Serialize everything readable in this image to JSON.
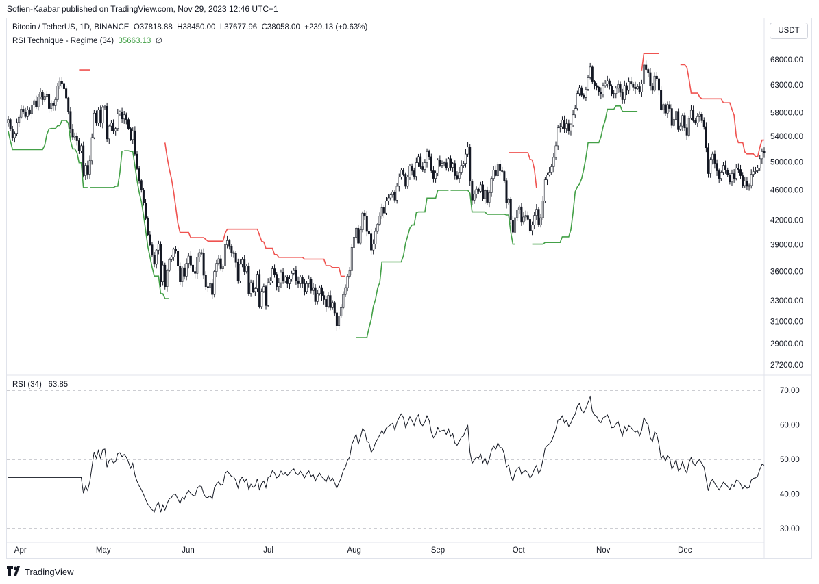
{
  "header": {
    "published": "Sofien-Kaabar published on TradingView.com, Nov 29, 2023 12:46 UTC+1"
  },
  "main_legend": {
    "symbol": "Bitcoin / TetherUS, 1D, BINANCE",
    "o": "O37818.88",
    "h": "H38450.00",
    "l": "L37677.96",
    "c": "C38058.00",
    "change": "+239.13 (+0.63%)",
    "indicator_name": "RSI Technique - Regime (34)",
    "indicator_value": "35663.13",
    "indicator_extra": "∅"
  },
  "currency_button": "USDT",
  "rsi_legend": {
    "name": "RSI (34)",
    "value": "63.85"
  },
  "footer": {
    "brand": "TradingView",
    "logo_icon": "tradingview-logo-icon"
  },
  "colors": {
    "up": "#26a69a",
    "candle_body_up": "#ffffff",
    "candle_body_down": "#131722",
    "resistance": "#ef5350",
    "support": "#43a047",
    "rsi_line": "#131722"
  },
  "chart_data": [
    {
      "type": "candlestick",
      "title": "Bitcoin / TetherUS, 1D, BINANCE",
      "x_labels": [
        "Apr",
        "May",
        "Jun",
        "Jul",
        "Aug",
        "Sep",
        "Oct",
        "Nov",
        "Dec"
      ],
      "y_scale": "log",
      "y_ticks": [
        68000,
        63000,
        58000,
        54000,
        50000,
        46000,
        42000,
        39000,
        36000,
        33000,
        31000,
        29000,
        27200
      ],
      "y_tick_labels": [
        "68000.00",
        "63000.00",
        "58000.00",
        "54000.00",
        "50000.00",
        "46000.00",
        "42000.00",
        "39000.00",
        "36000.00",
        "33000.00",
        "31000.00",
        "29000.00",
        "27200.00"
      ],
      "ylim": [
        26800,
        70500
      ],
      "grid": false,
      "note": "Close prices per candle, approx, Mar 27 2023 → Dec 29 2023",
      "closes": [
        56800,
        55200,
        53800,
        54500,
        56300,
        57200,
        58600,
        58100,
        57300,
        58500,
        57800,
        59300,
        60100,
        59000,
        60800,
        61700,
        60300,
        60900,
        61200,
        58700,
        59700,
        59200,
        60300,
        62800,
        63700,
        63300,
        62300,
        60600,
        58200,
        55200,
        53900,
        54100,
        53300,
        51700,
        52500,
        48000,
        49500,
        48200,
        50200,
        53800,
        57900,
        56200,
        58500,
        56200,
        58900,
        59100,
        53600,
        55700,
        56200,
        54900,
        55300,
        57800,
        58100,
        56900,
        57600,
        56800,
        55300,
        53500,
        54900,
        51200,
        49000,
        47300,
        46000,
        44200,
        42200,
        40200,
        39000,
        37800,
        36800,
        38400,
        39100,
        34900,
        36700,
        34400,
        36100,
        37300,
        37600,
        38500,
        38300,
        36600,
        34900,
        36400,
        35500,
        36900,
        37700,
        36700,
        36000,
        35800,
        37600,
        38100,
        38000,
        35600,
        34400,
        34300,
        34700,
        33600,
        36000,
        36900,
        37400,
        36300,
        36600,
        39000,
        39500,
        38800,
        38100,
        38000,
        37000,
        35000,
        36800,
        37300,
        36000,
        36600,
        33700,
        34800,
        33900,
        34200,
        35700,
        32400,
        33900,
        34400,
        32500,
        34800,
        35000,
        36300,
        35700,
        34400,
        34800,
        35900,
        35000,
        35400,
        34700,
        35200,
        35800,
        36100,
        35000,
        34700,
        35400,
        34700,
        33900,
        34700,
        35200,
        34000,
        34300,
        32900,
        33700,
        34300,
        33500,
        33100,
        32400,
        33500,
        32300,
        32800,
        31800,
        30600,
        31500,
        32300,
        33600,
        34300,
        35500,
        36100,
        38700,
        39900,
        41000,
        39200,
        40800,
        42900,
        42500,
        40600,
        40300,
        38400,
        39100,
        40600,
        41500,
        42500,
        43600,
        42900,
        44500,
        44900,
        45300,
        45700,
        44600,
        46500,
        47800,
        48800,
        48200,
        46500,
        47800,
        49400,
        48700,
        47900,
        49900,
        50800,
        49300,
        48900,
        49900,
        51600,
        50800,
        48700,
        47600,
        48400,
        50300,
        49500,
        49800,
        49900,
        49100,
        50500,
        49200,
        49800,
        48000,
        47600,
        48500,
        49500,
        49800,
        51200,
        52300,
        47200,
        44600,
        45400,
        46100,
        45800,
        46700,
        44800,
        45900,
        44300,
        45600,
        47600,
        48800,
        48000,
        49700,
        48700,
        48600,
        47300,
        44200,
        44700,
        42000,
        40500,
        42300,
        43300,
        43700,
        41800,
        42400,
        42600,
        42100,
        40700,
        41400,
        42600,
        43400,
        41400,
        42300,
        44500,
        47400,
        48100,
        48500,
        49300,
        50700,
        52500,
        55400,
        55600,
        56700,
        55300,
        56100,
        54900,
        55900,
        57600,
        58700,
        61400,
        62500,
        61100,
        60700,
        62200,
        64400,
        66500,
        63600,
        62900,
        62600,
        61700,
        61300,
        62900,
        63200,
        63800,
        62800,
        61300,
        61400,
        62400,
        63100,
        61600,
        60300,
        62900,
        62000,
        63600,
        63200,
        62600,
        62300,
        62700,
        61700,
        63200,
        66900,
        66000,
        65400,
        62800,
        62000,
        64700,
        64200,
        62000,
        58500,
        59400,
        57900,
        59400,
        58700,
        55800,
        56800,
        58200,
        55100,
        55700,
        57500,
        55400,
        54200,
        57000,
        58400,
        56600,
        56200,
        57300,
        57700,
        56600,
        55600,
        52200,
        48300,
        50400,
        51200,
        49800,
        48700,
        47600,
        48500,
        49500,
        48800,
        48100,
        47100,
        48300,
        47600,
        49100,
        48900,
        48000,
        46600,
        47200,
        46500,
        46600,
        48200,
        48600,
        48700,
        49100,
        50500,
        51600,
        51400
      ],
      "resistance": "red line (regime resistance), segments",
      "support": "green line (regime support), segments"
    },
    {
      "type": "line",
      "title": "RSI (34)",
      "y_ticks": [
        70,
        60,
        50,
        40,
        30
      ],
      "y_tick_labels": [
        "70.00",
        "60.00",
        "50.00",
        "40.00",
        "30.00"
      ],
      "ylim": [
        28,
        72
      ],
      "reference_lines": [
        70,
        50,
        30
      ],
      "last_value": 63.85
    }
  ]
}
